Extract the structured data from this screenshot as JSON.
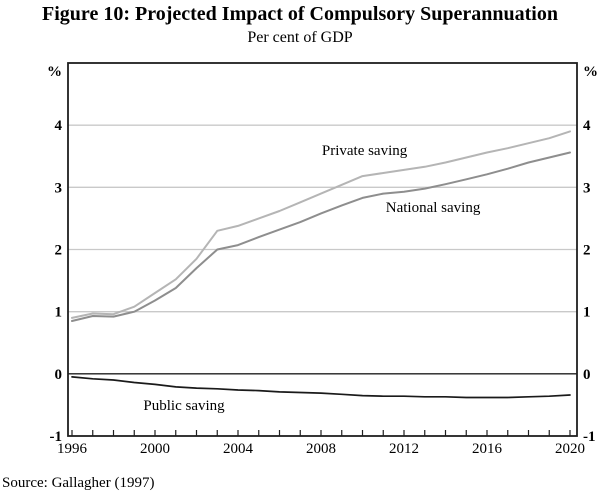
{
  "figure": {
    "title": "Figure 10: Projected Impact of Compulsory Superannuation",
    "subtitle": "Per cent of GDP",
    "source_note": "Source: Gallagher (1997)"
  },
  "chart_data": {
    "type": "line",
    "title": "Figure 10: Projected Impact of Compulsory Superannuation",
    "subtitle": "Per cent of GDP",
    "ylabel": "% of GDP",
    "grid": true,
    "legend_position": "inline-labels",
    "x": [
      1996,
      1997,
      1998,
      1999,
      2000,
      2001,
      2002,
      2003,
      2004,
      2005,
      2006,
      2007,
      2008,
      2009,
      2010,
      2011,
      2012,
      2013,
      2014,
      2015,
      2016,
      2017,
      2018,
      2019,
      2020
    ],
    "x_axis": {
      "tick_labels": [
        1996,
        2000,
        2004,
        2008,
        2012,
        2016,
        2020
      ],
      "minor_ticks": "every-year"
    },
    "y_axis": {
      "range": [
        -1,
        5
      ],
      "gridlines": [
        1,
        2,
        3,
        4
      ],
      "zero_line": 0,
      "labels": [
        4,
        3,
        2,
        1,
        0,
        -1
      ],
      "unit": "%",
      "label_both_sides": true
    },
    "colors": {
      "grid": "#c9c9c9",
      "axis": "#1f1f1f",
      "text": "#000000"
    },
    "series": [
      {
        "id": "private-saving",
        "name": "Private saving",
        "color": "#b5b5b5",
        "stroke_width": 2,
        "label_pos": {
          "x": 2010.1,
          "y": 3.6
        },
        "values": [
          0.9,
          0.97,
          0.96,
          1.08,
          1.3,
          1.52,
          1.85,
          2.3,
          2.38,
          2.5,
          2.62,
          2.76,
          2.9,
          3.04,
          3.18,
          3.23,
          3.28,
          3.33,
          3.4,
          3.48,
          3.56,
          3.63,
          3.71,
          3.79,
          3.9
        ]
      },
      {
        "id": "national-saving",
        "name": "National saving",
        "color": "#8e8e8e",
        "stroke_width": 2,
        "label_pos": {
          "x": 2013.4,
          "y": 2.68
        },
        "values": [
          0.85,
          0.93,
          0.92,
          1.0,
          1.18,
          1.38,
          1.7,
          2.0,
          2.07,
          2.2,
          2.32,
          2.44,
          2.58,
          2.71,
          2.83,
          2.9,
          2.93,
          2.98,
          3.05,
          3.13,
          3.21,
          3.3,
          3.4,
          3.48,
          3.56
        ]
      },
      {
        "id": "public-saving",
        "name": "Public saving",
        "color": "#1a1a1a",
        "stroke_width": 1.7,
        "label_pos": {
          "x": 2001.4,
          "y": -0.5
        },
        "values": [
          -0.05,
          -0.08,
          -0.1,
          -0.14,
          -0.17,
          -0.21,
          -0.23,
          -0.24,
          -0.26,
          -0.27,
          -0.29,
          -0.3,
          -0.31,
          -0.33,
          -0.35,
          -0.36,
          -0.36,
          -0.37,
          -0.37,
          -0.38,
          -0.38,
          -0.38,
          -0.37,
          -0.36,
          -0.34
        ]
      }
    ]
  }
}
